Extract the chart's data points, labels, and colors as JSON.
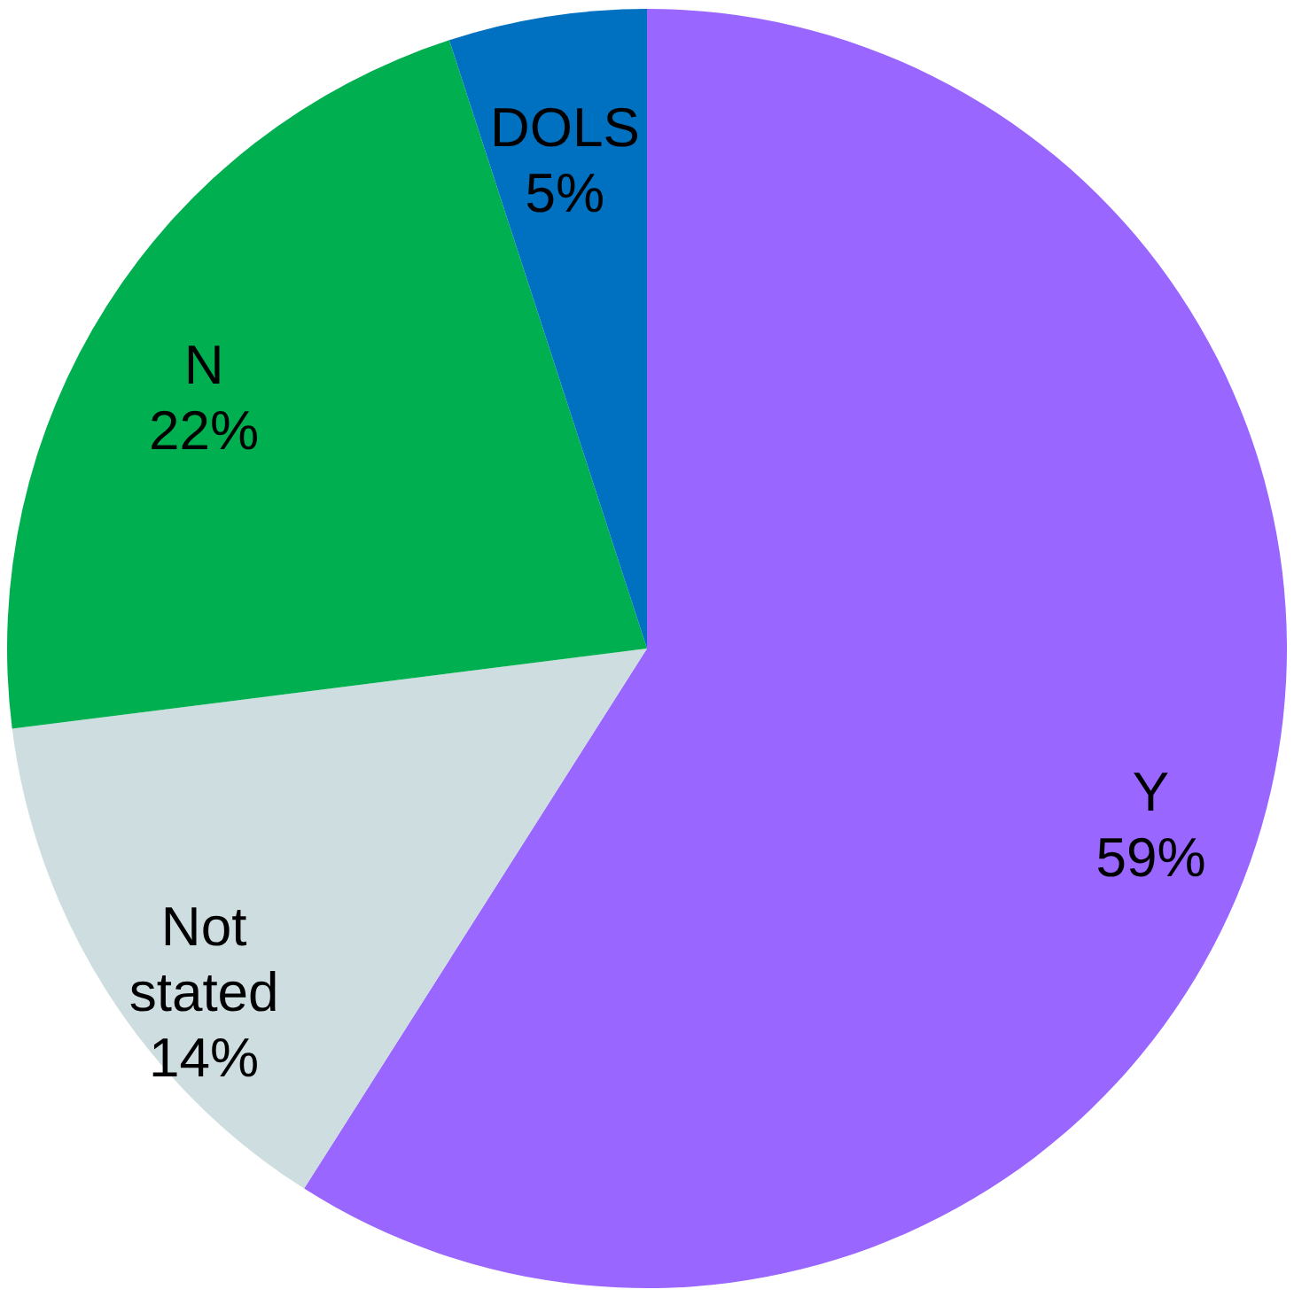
{
  "chart_data": {
    "type": "pie",
    "categories": [
      "Y",
      "Not stated",
      "N",
      "DOLS"
    ],
    "values": [
      59,
      14,
      22,
      5
    ],
    "colors": [
      "#9966ff",
      "#cddde0",
      "#00b050",
      "#0070c0"
    ],
    "value_labels": [
      "59%",
      "14%",
      "22%",
      "5%"
    ]
  }
}
